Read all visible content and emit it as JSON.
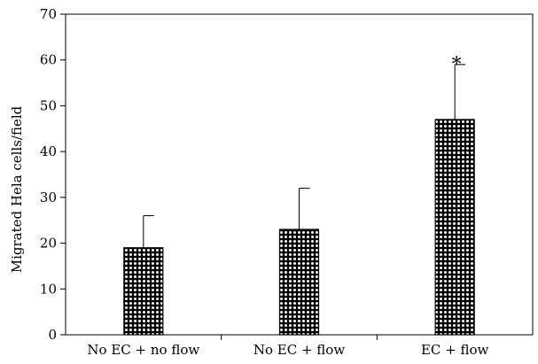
{
  "chart_data": {
    "type": "bar",
    "title": "",
    "xlabel": "",
    "ylabel": "Migrated Hela cells/field",
    "categories": [
      "No EC + no flow",
      "No EC + flow",
      "EC + flow"
    ],
    "values": [
      19,
      23,
      47
    ],
    "error_upper": [
      26,
      32,
      59
    ],
    "annotations": [
      {
        "category": "EC + flow",
        "text": "*"
      }
    ],
    "ylim": [
      0,
      70
    ],
    "yticks": [
      0,
      10,
      20,
      30,
      40,
      50,
      60,
      70
    ],
    "grid": false,
    "legend": "none",
    "bar_pattern": "checkered dots",
    "colors": {
      "bar_fill": "#000000",
      "bar_dot": "#ffffff",
      "axis": "#000000"
    }
  }
}
